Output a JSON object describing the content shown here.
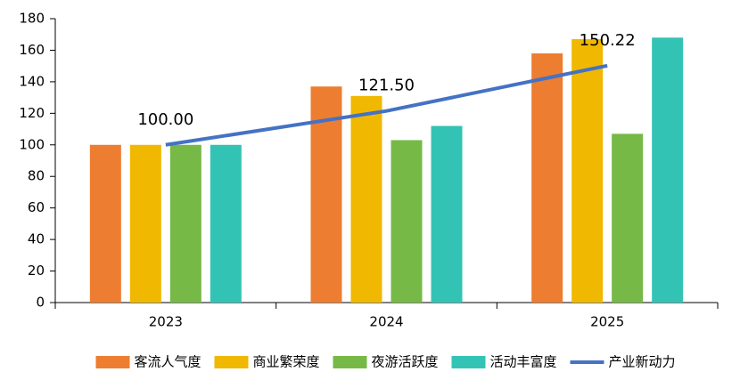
{
  "chart_data": {
    "type": "bar",
    "categories": [
      "2023",
      "2024",
      "2025"
    ],
    "series": [
      {
        "name": "客流人气度",
        "color": "#ED7D31",
        "values": [
          100,
          137,
          158
        ]
      },
      {
        "name": "商业繁荣度",
        "color": "#F0B800",
        "values": [
          100,
          131,
          167
        ]
      },
      {
        "name": "夜游活跃度",
        "color": "#76B947",
        "values": [
          100,
          103,
          107
        ]
      },
      {
        "name": "活动丰富度",
        "color": "#33C3B5",
        "values": [
          100,
          112,
          168
        ]
      },
      {
        "name": "产业新动力",
        "color": "#4472C4",
        "type": "line",
        "values": [
          100,
          121.5,
          150.22
        ],
        "value_labels": [
          "100.00",
          "121.50",
          "150.22"
        ]
      }
    ],
    "ylim": [
      0,
      180
    ],
    "yticks": [
      0,
      20,
      40,
      60,
      80,
      100,
      120,
      140,
      160,
      180
    ],
    "legend": "bottom"
  }
}
